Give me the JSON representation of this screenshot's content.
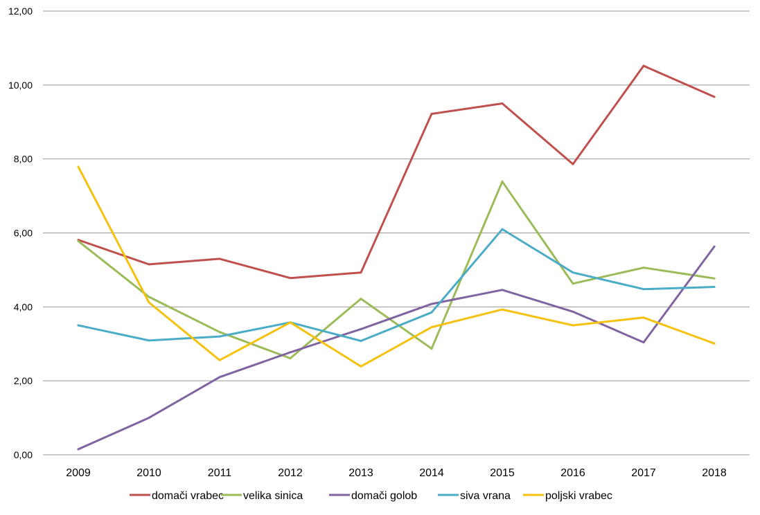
{
  "chart_data": {
    "type": "line",
    "title": "",
    "xlabel": "",
    "ylabel": "",
    "ylim": [
      0,
      12
    ],
    "y_ticks": [
      "0,00",
      "2,00",
      "4,00",
      "6,00",
      "8,00",
      "10,00",
      "12,00"
    ],
    "y_tick_values": [
      0,
      2,
      4,
      6,
      8,
      10,
      12
    ],
    "grid": "horizontal",
    "legend_position": "bottom",
    "categories": [
      "2009",
      "2010",
      "2011",
      "2012",
      "2013",
      "2014",
      "2015",
      "2016",
      "2017",
      "2018"
    ],
    "series": [
      {
        "name": "domači vrabec",
        "color": "#C0504D",
        "values": [
          5.81,
          5.15,
          5.3,
          4.78,
          4.93,
          9.22,
          9.5,
          7.86,
          10.52,
          9.68
        ]
      },
      {
        "name": "velika sinica",
        "color": "#9BBB59",
        "values": [
          5.78,
          4.27,
          3.32,
          2.61,
          4.22,
          2.87,
          7.39,
          4.63,
          5.06,
          4.77
        ]
      },
      {
        "name": "domači golob",
        "color": "#8064A2",
        "values": [
          0.15,
          1.0,
          2.1,
          2.77,
          3.4,
          4.08,
          4.46,
          3.87,
          3.04,
          5.63
        ]
      },
      {
        "name": "siva vrana",
        "color": "#4BACC6",
        "values": [
          3.5,
          3.09,
          3.2,
          3.58,
          3.08,
          3.85,
          6.1,
          4.93,
          4.48,
          4.54
        ]
      },
      {
        "name": "poljski vrabec",
        "color": "#F5C10F",
        "values": [
          7.79,
          4.12,
          2.56,
          3.58,
          2.39,
          3.45,
          3.93,
          3.5,
          3.71,
          3.01
        ]
      }
    ]
  }
}
